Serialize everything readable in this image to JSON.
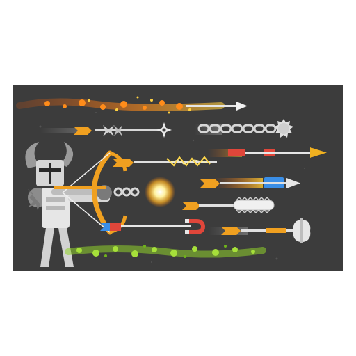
{
  "scene": {
    "background": "#3c3c3c",
    "character": "horned-knight-archer",
    "weapon": "golden-bow",
    "arrows": [
      {
        "name": "fire-arrow",
        "effect": "fire-trail"
      },
      {
        "name": "shuriken-arrow",
        "tip": "shuriken"
      },
      {
        "name": "chain-mace-arrow",
        "tip": "spiked-ball"
      },
      {
        "name": "rocket-arrow",
        "tip": "yellow-point"
      },
      {
        "name": "lightning-arrow",
        "effect": "lightning"
      },
      {
        "name": "muzzle-flash-shot",
        "effect": "flash"
      },
      {
        "name": "jet-arrow",
        "tip": "blue-point"
      },
      {
        "name": "chainsaw-arrow",
        "tip": "chainsaw"
      },
      {
        "name": "magnet-arrow",
        "tip": "magnet"
      },
      {
        "name": "axe-arrow",
        "tip": "double-axe"
      },
      {
        "name": "poison-arrow",
        "effect": "green-mist"
      }
    ],
    "colors": {
      "fire": "#ff8c1a",
      "gold": "#f0a020",
      "steel": "#cfcfcf",
      "red_fletch": "#e0463a",
      "blue_fletch": "#3a8ee6",
      "poison": "#8fd12a",
      "flash": "#fff2a0"
    }
  }
}
